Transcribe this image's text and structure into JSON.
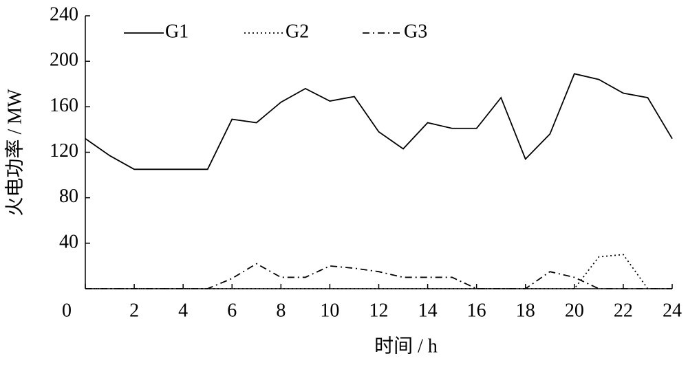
{
  "chart_data": {
    "type": "line",
    "x_label": "时间 / h",
    "y_label": "火电功率 / MW",
    "x": [
      0,
      1,
      2,
      3,
      4,
      5,
      6,
      7,
      8,
      9,
      10,
      11,
      12,
      13,
      14,
      15,
      16,
      17,
      18,
      19,
      20,
      21,
      22,
      23,
      24
    ],
    "series": [
      {
        "name": "G1",
        "color": "#000000",
        "dash": "solid",
        "values": [
          132,
          117,
          105,
          105,
          105,
          105,
          149,
          146,
          164,
          176,
          165,
          169,
          138,
          123,
          146,
          141,
          141,
          168,
          114,
          136,
          189,
          184,
          172,
          168,
          132
        ]
      },
      {
        "name": "G2",
        "color": "#000000",
        "dash": "dotted",
        "values": [
          0,
          0,
          0,
          0,
          0,
          0,
          0,
          0,
          0,
          0,
          0,
          0,
          0,
          0,
          0,
          0,
          0,
          0,
          0,
          0,
          0,
          28,
          30,
          0,
          0
        ]
      },
      {
        "name": "G3",
        "color": "#000000",
        "dash": "dashdot",
        "values": [
          0,
          0,
          0,
          0,
          0,
          0,
          9,
          22,
          10,
          10,
          20,
          18,
          15,
          10,
          10,
          10,
          0,
          0,
          0,
          15,
          10,
          0,
          0,
          0,
          0
        ]
      }
    ],
    "xlim": [
      0,
      24
    ],
    "xticks": [
      0,
      2,
      4,
      6,
      8,
      10,
      12,
      14,
      16,
      18,
      20,
      22,
      24
    ],
    "ylim": [
      0,
      240
    ],
    "yticks": [
      40,
      80,
      120,
      160,
      200,
      240
    ],
    "legend": "top-left"
  }
}
